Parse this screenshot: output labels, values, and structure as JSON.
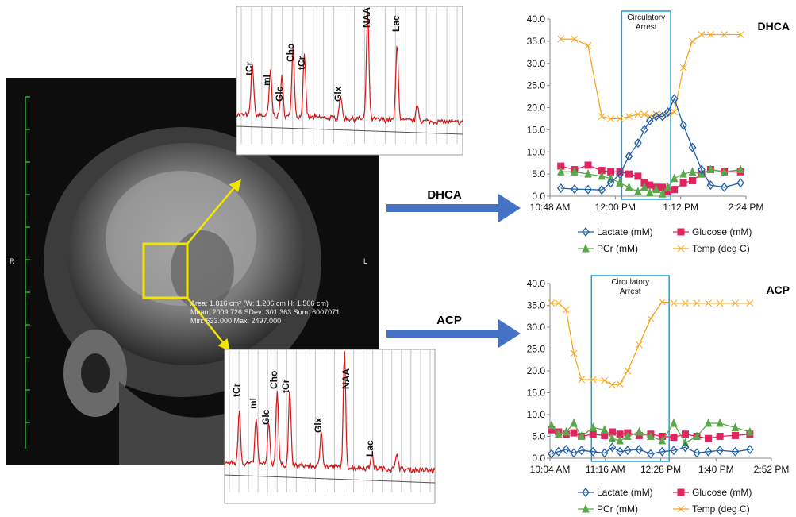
{
  "figure": {
    "mri": {
      "side_left": "R",
      "side_right": "L",
      "roi_stats": [
        "Area: 1.816 cm² (W: 1.206 cm H: 1.506 cm)",
        "Mean: 2009.726  SDev: 301.363  Sum: 6007071",
        "Min: 633.000  Max: 2497.000"
      ]
    },
    "spectra": [
      {
        "peaks": [
          "tCr",
          "mI",
          "Glc",
          "Cho",
          "tCr",
          "Glx",
          "NAA",
          "Lac"
        ]
      },
      {
        "peaks": [
          "tCr",
          "mI",
          "Glc",
          "Cho",
          "tCr",
          "Glx",
          "NAA",
          "Lac"
        ]
      }
    ],
    "arrows": [
      "DHCA",
      "ACP"
    ]
  },
  "chart_data": [
    {
      "type": "line",
      "title": "DHCA",
      "annotation": {
        "text": "Circulatory Arrest",
        "x": [
          727,
          781
        ]
      },
      "x": [
        660,
        675,
        690,
        705,
        715,
        725,
        735,
        745,
        752,
        758,
        765,
        772,
        778,
        785,
        795,
        805,
        815,
        825,
        840,
        858
      ],
      "xlim": [
        648,
        864
      ],
      "xticks": [
        {
          "value": 648,
          "label": "10:48 AM"
        },
        {
          "value": 720,
          "label": "12:00 PM"
        },
        {
          "value": 792,
          "label": "1:12 PM"
        },
        {
          "value": 864,
          "label": "2:24 PM"
        }
      ],
      "ylim": [
        0,
        40
      ],
      "yticks": [
        {
          "value": 0,
          "label": "0.0"
        },
        {
          "value": 5,
          "label": "5.0"
        },
        {
          "value": 10,
          "label": "10.0"
        },
        {
          "value": 15,
          "label": "15.0"
        },
        {
          "value": 20,
          "label": "20.0"
        },
        {
          "value": 25,
          "label": "25.0"
        },
        {
          "value": 30,
          "label": "30.0"
        },
        {
          "value": 35,
          "label": "35.0"
        },
        {
          "value": 40,
          "label": "40.0"
        }
      ],
      "series": [
        {
          "name": "Lactate (mM)",
          "color": "#1f5fa8",
          "marker": "diamond",
          "values": [
            1.8,
            1.6,
            1.5,
            1.4,
            3,
            5,
            9,
            12,
            15,
            17,
            18,
            18,
            19,
            22,
            16,
            11,
            6,
            2.5,
            2,
            3
          ]
        },
        {
          "name": "Glucose (mM)",
          "color": "#e0245e",
          "marker": "square",
          "values": [
            6.8,
            6,
            7,
            5.8,
            5.5,
            5.5,
            5,
            4.5,
            3,
            2.5,
            2,
            2,
            1,
            1.5,
            3,
            3.5,
            5,
            6,
            5.5,
            5.5
          ]
        },
        {
          "name": "PCr (mM)",
          "color": "#5aa84a",
          "marker": "triangle",
          "values": [
            5.5,
            5.5,
            5,
            4.5,
            4,
            3,
            2,
            1,
            2,
            0.8,
            1.5,
            0.5,
            2,
            4,
            5,
            5.5,
            5,
            6,
            5.5,
            6
          ]
        },
        {
          "name": "Temp (deg C)",
          "color": "#f5a623",
          "marker": "cross",
          "values": [
            35.5,
            35.5,
            34,
            18,
            17.5,
            17.5,
            18,
            18.5,
            18.5,
            18,
            18.5,
            18.5,
            18.5,
            19,
            29,
            35,
            36.5,
            36.5,
            36.5,
            36.5
          ]
        }
      ]
    },
    {
      "type": "line",
      "title": "ACP",
      "annotation": {
        "text": "Circulatory Arrest",
        "x": [
          658,
          759
        ]
      },
      "x": [
        606,
        615,
        625,
        635,
        645,
        660,
        675,
        685,
        695,
        705,
        720,
        735,
        750,
        765,
        780,
        795,
        810,
        825,
        845,
        864
      ],
      "xlim": [
        604,
        892
      ],
      "xticks": [
        {
          "value": 604,
          "label": "10:04 AM"
        },
        {
          "value": 676,
          "label": "11:16 AM"
        },
        {
          "value": 748,
          "label": "12:28 PM"
        },
        {
          "value": 820,
          "label": "1:40 PM"
        },
        {
          "value": 892,
          "label": "2:52 PM"
        }
      ],
      "ylim": [
        0,
        40
      ],
      "yticks": [
        {
          "value": 0,
          "label": "0.0"
        },
        {
          "value": 5,
          "label": "5.0"
        },
        {
          "value": 10,
          "label": "10.0"
        },
        {
          "value": 15,
          "label": "15.0"
        },
        {
          "value": 20,
          "label": "20.0"
        },
        {
          "value": 25,
          "label": "25.0"
        },
        {
          "value": 30,
          "label": "30.0"
        },
        {
          "value": 35,
          "label": "35.0"
        },
        {
          "value": 40,
          "label": "40.0"
        }
      ],
      "series": [
        {
          "name": "Lactate (mM)",
          "color": "#1f5fa8",
          "marker": "diamond",
          "values": [
            1,
            1.5,
            2,
            1.2,
            1.8,
            1.5,
            1.2,
            2.5,
            1.5,
            1.8,
            2,
            1,
            1.5,
            1.8,
            2.5,
            1.2,
            1.5,
            1.8,
            1.5,
            2
          ]
        },
        {
          "name": "Glucose (mM)",
          "color": "#e0245e",
          "marker": "square",
          "values": [
            6.5,
            6,
            5.5,
            5.8,
            5,
            5.5,
            5.2,
            6,
            5.5,
            5.8,
            5.2,
            5.5,
            5,
            4.8,
            5.5,
            5,
            4.5,
            5,
            5.2,
            5.5
          ]
        },
        {
          "name": "PCr (mM)",
          "color": "#5aa84a",
          "marker": "triangle",
          "values": [
            7.5,
            5.5,
            6,
            8,
            5,
            7,
            6.5,
            4.5,
            4,
            5,
            6,
            5,
            4,
            8,
            3.5,
            5,
            8,
            8,
            7,
            6
          ]
        },
        {
          "name": "Temp (deg C)",
          "color": "#f5a623",
          "marker": "cross",
          "values": [
            35.5,
            35.5,
            34,
            24,
            18,
            18,
            17.8,
            16.8,
            17,
            20,
            26,
            32,
            35.8,
            35.5,
            35.5,
            35.5,
            35.5,
            35.5,
            35.5,
            35.5
          ]
        }
      ]
    }
  ]
}
